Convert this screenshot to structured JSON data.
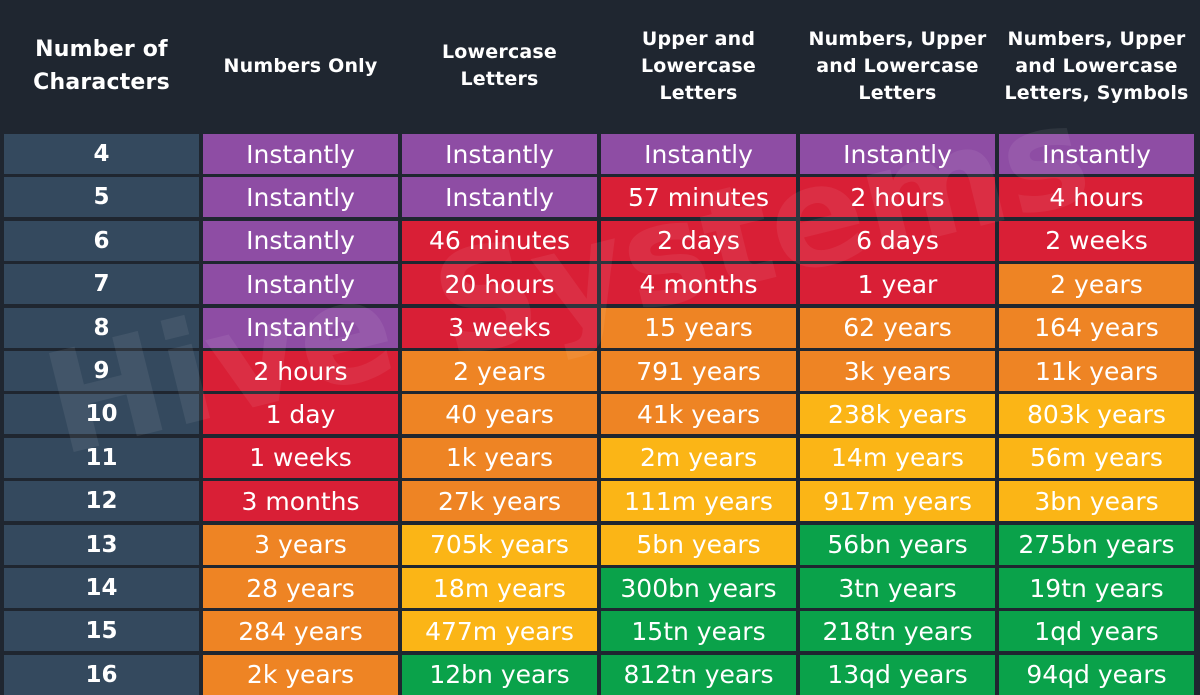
{
  "chart_data": {
    "type": "table",
    "columns": [
      "Number of Characters",
      "Numbers Only",
      "Lowercase Letters",
      "Upper and Lowercase Letters",
      "Numbers, Upper and Lowercase Letters",
      "Numbers, Upper and Lowercase Letters, Symbols"
    ],
    "column_header_lines": [
      [
        "Number of",
        "Characters"
      ],
      [
        "Numbers Only"
      ],
      [
        "Lowercase",
        "Letters"
      ],
      [
        "Upper and",
        "Lowercase",
        "Letters"
      ],
      [
        "Numbers, Upper",
        "and Lowercase",
        "Letters"
      ],
      [
        "Numbers, Upper",
        "and Lowercase",
        "Letters, Symbols"
      ]
    ],
    "rows": [
      {
        "chars": "4",
        "values": [
          "Instantly",
          "Instantly",
          "Instantly",
          "Instantly",
          "Instantly"
        ],
        "levels": [
          "instant",
          "instant",
          "instant",
          "instant",
          "instant"
        ]
      },
      {
        "chars": "5",
        "values": [
          "Instantly",
          "Instantly",
          "57 minutes",
          "2 hours",
          "4 hours"
        ],
        "levels": [
          "instant",
          "instant",
          "red",
          "red",
          "red"
        ]
      },
      {
        "chars": "6",
        "values": [
          "Instantly",
          "46 minutes",
          "2 days",
          "6 days",
          "2 weeks"
        ],
        "levels": [
          "instant",
          "red",
          "red",
          "red",
          "red"
        ]
      },
      {
        "chars": "7",
        "values": [
          "Instantly",
          "20 hours",
          "4 months",
          "1 year",
          "2 years"
        ],
        "levels": [
          "instant",
          "red",
          "red",
          "red",
          "orange"
        ]
      },
      {
        "chars": "8",
        "values": [
          "Instantly",
          "3 weeks",
          "15 years",
          "62 years",
          "164 years"
        ],
        "levels": [
          "instant",
          "red",
          "orange",
          "orange",
          "orange"
        ]
      },
      {
        "chars": "9",
        "values": [
          "2 hours",
          "2 years",
          "791 years",
          "3k years",
          "11k years"
        ],
        "levels": [
          "red",
          "orange",
          "orange",
          "orange",
          "orange"
        ]
      },
      {
        "chars": "10",
        "values": [
          "1 day",
          "40 years",
          "41k years",
          "238k years",
          "803k years"
        ],
        "levels": [
          "red",
          "orange",
          "orange",
          "yellow",
          "yellow"
        ]
      },
      {
        "chars": "11",
        "values": [
          "1 weeks",
          "1k years",
          "2m years",
          "14m years",
          "56m years"
        ],
        "levels": [
          "red",
          "orange",
          "yellow",
          "yellow",
          "yellow"
        ]
      },
      {
        "chars": "12",
        "values": [
          "3 months",
          "27k years",
          "111m years",
          "917m years",
          "3bn years"
        ],
        "levels": [
          "red",
          "orange",
          "yellow",
          "yellow",
          "yellow"
        ]
      },
      {
        "chars": "13",
        "values": [
          "3 years",
          "705k years",
          "5bn years",
          "56bn years",
          "275bn years"
        ],
        "levels": [
          "orange",
          "yellow",
          "yellow",
          "green",
          "green"
        ]
      },
      {
        "chars": "14",
        "values": [
          "28 years",
          "18m years",
          "300bn years",
          "3tn years",
          "19tn years"
        ],
        "levels": [
          "orange",
          "yellow",
          "green",
          "green",
          "green"
        ]
      },
      {
        "chars": "15",
        "values": [
          "284 years",
          "477m years",
          "15tn years",
          "218tn years",
          "1qd years"
        ],
        "levels": [
          "orange",
          "yellow",
          "green",
          "green",
          "green"
        ]
      },
      {
        "chars": "16",
        "values": [
          "2k years",
          "12bn years",
          "812tn years",
          "13qd years",
          "94qd years"
        ],
        "levels": [
          "orange",
          "green",
          "green",
          "green",
          "green"
        ]
      }
    ],
    "colors": {
      "header_bg": "#1f2630",
      "row_label_bg": "#34495e",
      "instant": "#8e4da4",
      "red": "#d91f36",
      "orange": "#ee8424",
      "yellow": "#fbb516",
      "green": "#0aa24a"
    },
    "watermark": "Hive Systems"
  }
}
